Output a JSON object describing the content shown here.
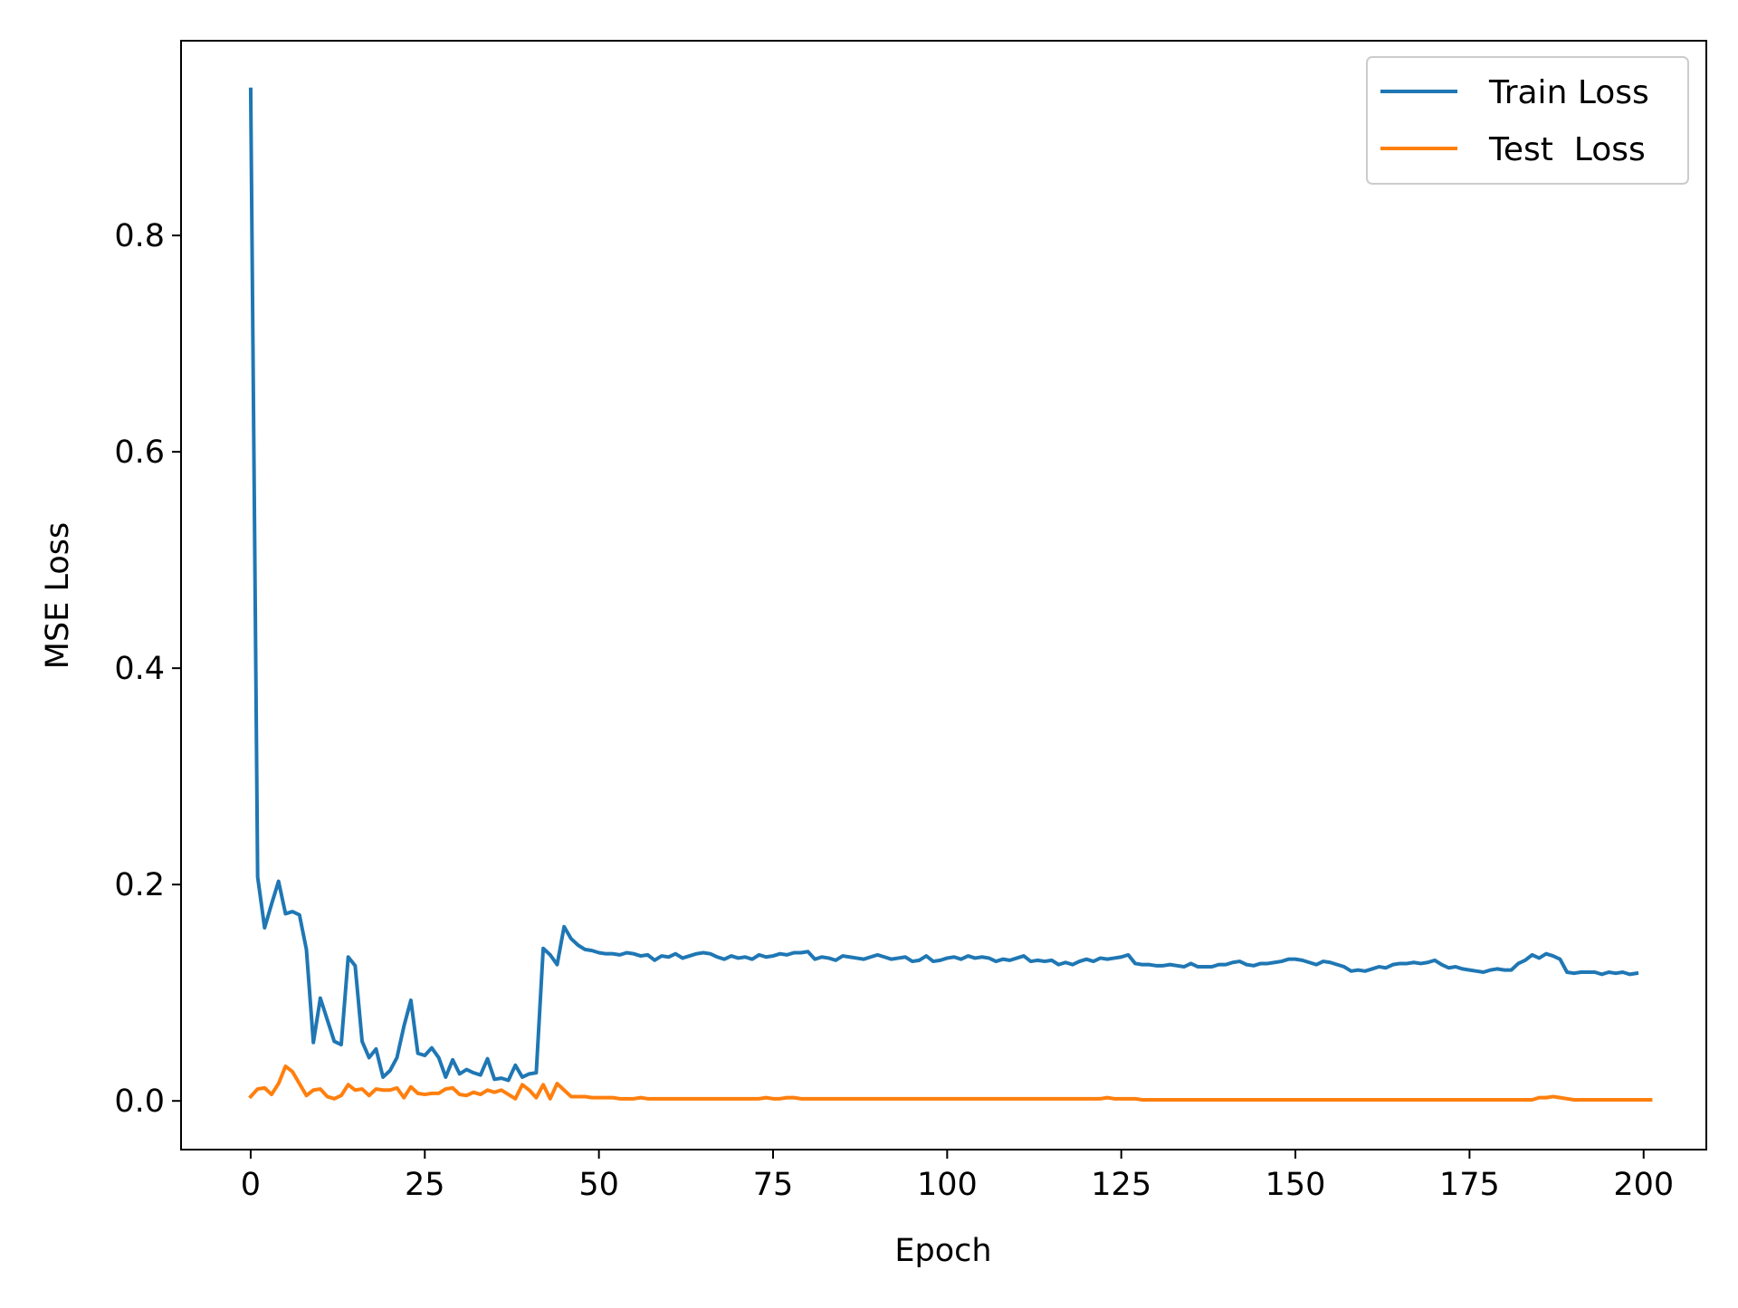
{
  "chart_data": {
    "type": "line",
    "title": "",
    "xlabel": "Epoch",
    "ylabel": "MSE Loss",
    "xlim": [
      -10,
      209
    ],
    "ylim": [
      -0.045,
      0.98
    ],
    "xticks": [
      0,
      25,
      50,
      75,
      100,
      125,
      150,
      175,
      200
    ],
    "yticks": [
      0.0,
      0.2,
      0.4,
      0.6,
      0.8
    ],
    "xtick_labels": [
      "0",
      "25",
      "50",
      "75",
      "100",
      "125",
      "150",
      "175",
      "200"
    ],
    "ytick_labels": [
      "0.0",
      "0.2",
      "0.4",
      "0.6",
      "0.8"
    ],
    "grid": false,
    "legend": "top-right",
    "series": [
      {
        "name": "Train Loss",
        "color": "#1f77b4",
        "x_start": 0,
        "x_step": 1,
        "values": [
          0.935,
          0.207,
          0.16,
          0.182,
          0.203,
          0.173,
          0.175,
          0.172,
          0.14,
          0.054,
          0.095,
          0.075,
          0.055,
          0.052,
          0.133,
          0.125,
          0.055,
          0.04,
          0.048,
          0.022,
          0.028,
          0.04,
          0.069,
          0.093,
          0.044,
          0.042,
          0.049,
          0.04,
          0.022,
          0.038,
          0.025,
          0.029,
          0.026,
          0.024,
          0.039,
          0.02,
          0.021,
          0.019,
          0.033,
          0.022,
          0.025,
          0.026,
          0.141,
          0.135,
          0.126,
          0.161,
          0.15,
          0.144,
          0.14,
          0.139,
          0.137,
          0.136,
          0.136,
          0.135,
          0.137,
          0.136,
          0.134,
          0.135,
          0.13,
          0.134,
          0.133,
          0.136,
          0.132,
          0.134,
          0.136,
          0.137,
          0.136,
          0.133,
          0.131,
          0.134,
          0.132,
          0.133,
          0.131,
          0.135,
          0.133,
          0.134,
          0.136,
          0.135,
          0.137,
          0.137,
          0.138,
          0.131,
          0.133,
          0.132,
          0.13,
          0.134,
          0.133,
          0.132,
          0.131,
          0.133,
          0.135,
          0.133,
          0.131,
          0.132,
          0.133,
          0.129,
          0.13,
          0.134,
          0.129,
          0.13,
          0.132,
          0.133,
          0.131,
          0.134,
          0.132,
          0.133,
          0.132,
          0.129,
          0.131,
          0.13,
          0.132,
          0.134,
          0.129,
          0.13,
          0.129,
          0.13,
          0.126,
          0.128,
          0.126,
          0.129,
          0.131,
          0.129,
          0.132,
          0.131,
          0.132,
          0.133,
          0.135,
          0.127,
          0.126,
          0.126,
          0.125,
          0.125,
          0.126,
          0.125,
          0.124,
          0.127,
          0.124,
          0.124,
          0.124,
          0.126,
          0.126,
          0.128,
          0.129,
          0.126,
          0.125,
          0.127,
          0.127,
          0.128,
          0.129,
          0.131,
          0.131,
          0.13,
          0.128,
          0.126,
          0.129,
          0.128,
          0.126,
          0.124,
          0.12,
          0.121,
          0.12,
          0.122,
          0.124,
          0.123,
          0.126,
          0.127,
          0.127,
          0.128,
          0.127,
          0.128,
          0.13,
          0.126,
          0.123,
          0.124,
          0.122,
          0.121,
          0.12,
          0.119,
          0.121,
          0.122,
          0.121,
          0.121,
          0.127,
          0.13,
          0.135,
          0.132,
          0.136,
          0.134,
          0.131,
          0.119,
          0.118,
          0.119,
          0.119,
          0.119,
          0.117,
          0.119,
          0.118,
          0.119,
          0.117,
          0.118
        ]
      },
      {
        "name": "Test  Loss",
        "color": "#ff7f0e",
        "x_start": 0,
        "x_step": 1,
        "values": [
          0.004,
          0.011,
          0.012,
          0.006,
          0.016,
          0.032,
          0.027,
          0.016,
          0.005,
          0.01,
          0.011,
          0.004,
          0.002,
          0.005,
          0.015,
          0.01,
          0.011,
          0.005,
          0.011,
          0.01,
          0.01,
          0.012,
          0.003,
          0.013,
          0.007,
          0.006,
          0.007,
          0.007,
          0.011,
          0.012,
          0.006,
          0.005,
          0.008,
          0.006,
          0.01,
          0.008,
          0.01,
          0.006,
          0.002,
          0.015,
          0.01,
          0.003,
          0.015,
          0.002,
          0.016,
          0.01,
          0.004,
          0.004,
          0.004,
          0.003,
          0.003,
          0.003,
          0.003,
          0.002,
          0.002,
          0.002,
          0.003,
          0.002,
          0.002,
          0.002,
          0.002,
          0.002,
          0.002,
          0.002,
          0.002,
          0.002,
          0.002,
          0.002,
          0.002,
          0.002,
          0.002,
          0.002,
          0.002,
          0.002,
          0.003,
          0.002,
          0.002,
          0.003,
          0.003,
          0.002,
          0.002,
          0.002,
          0.002,
          0.002,
          0.002,
          0.002,
          0.002,
          0.002,
          0.002,
          0.002,
          0.002,
          0.002,
          0.002,
          0.002,
          0.002,
          0.002,
          0.002,
          0.002,
          0.002,
          0.002,
          0.002,
          0.002,
          0.002,
          0.002,
          0.002,
          0.002,
          0.002,
          0.002,
          0.002,
          0.002,
          0.002,
          0.002,
          0.002,
          0.002,
          0.002,
          0.002,
          0.002,
          0.002,
          0.002,
          0.002,
          0.002,
          0.002,
          0.002,
          0.003,
          0.002,
          0.002,
          0.002,
          0.002,
          0.001,
          0.001,
          0.001,
          0.001,
          0.001,
          0.001,
          0.001,
          0.001,
          0.001,
          0.001,
          0.001,
          0.001,
          0.001,
          0.001,
          0.001,
          0.001,
          0.001,
          0.001,
          0.001,
          0.001,
          0.001,
          0.001,
          0.001,
          0.001,
          0.001,
          0.001,
          0.001,
          0.001,
          0.001,
          0.001,
          0.001,
          0.001,
          0.001,
          0.001,
          0.001,
          0.001,
          0.001,
          0.001,
          0.001,
          0.001,
          0.001,
          0.001,
          0.001,
          0.001,
          0.001,
          0.001,
          0.001,
          0.001,
          0.001,
          0.001,
          0.001,
          0.001,
          0.001,
          0.001,
          0.001,
          0.001,
          0.001,
          0.003,
          0.003,
          0.004,
          0.003,
          0.002,
          0.001,
          0.001,
          0.001,
          0.001,
          0.001,
          0.001,
          0.001,
          0.001,
          0.001,
          0.001,
          0.001,
          0.001
        ]
      }
    ]
  }
}
